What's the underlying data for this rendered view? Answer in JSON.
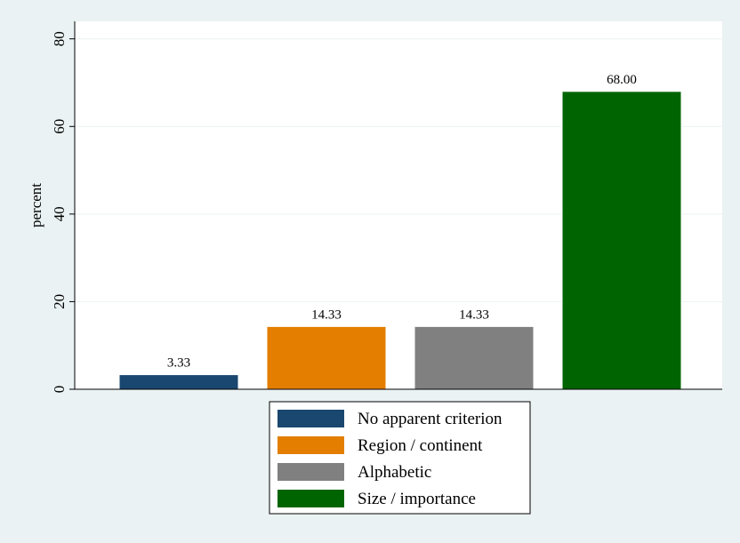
{
  "chart_data": {
    "type": "bar",
    "ylabel": "percent",
    "xlabel": "",
    "ylim": [
      0,
      84
    ],
    "yticks": [
      0,
      20,
      40,
      60,
      80
    ],
    "grid": true,
    "legend_position": "bottom",
    "series": [
      {
        "name": "No apparent criterion",
        "value": 3.33,
        "label": "3.33",
        "color": "#1a476f"
      },
      {
        "name": "Region / continent",
        "value": 14.33,
        "label": "14.33",
        "color": "#e37e00"
      },
      {
        "name": "Alphabetic",
        "value": 14.33,
        "label": "14.33",
        "color": "#808080"
      },
      {
        "name": "Size / importance",
        "value": 68.0,
        "label": "68.00",
        "color": "#006400"
      }
    ]
  }
}
